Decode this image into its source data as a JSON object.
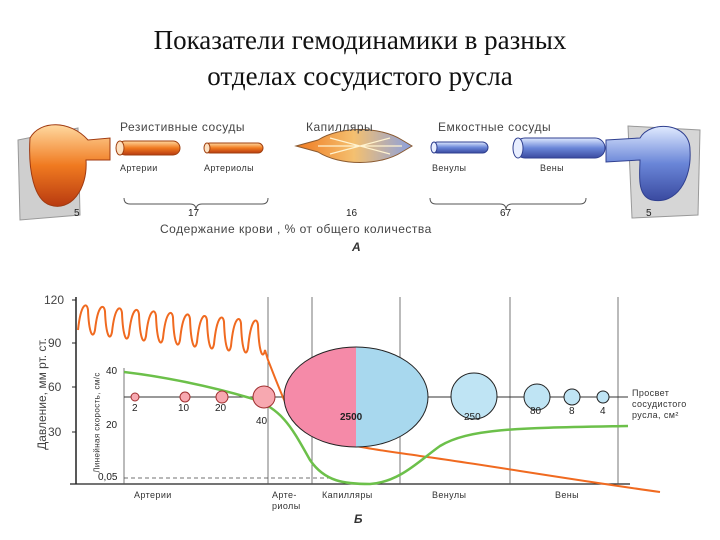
{
  "title": {
    "line1": "Показатели гемодинамики в разных",
    "line2": "отделах сосудистого русла"
  },
  "panel_a": {
    "group_labels": [
      "Резистивные сосуды",
      "Капилляры",
      "Емкостные сосуды"
    ],
    "vessel_labels": [
      "Артерии",
      "Артериолы",
      "Венулы",
      "Вены"
    ],
    "blood_content_values": [
      "5",
      "17",
      "16",
      "67",
      "5"
    ],
    "blood_content_caption": "Содержание крови , % от общего количества",
    "panel_letter": "А"
  },
  "panel_b": {
    "pressure_axis_label": "Давление, мм рт. ст.",
    "pressure_ticks": [
      "120",
      "90",
      "60",
      "30"
    ],
    "velocity_axis_label": "Линейная скорость, см/с",
    "velocity_ticks": [
      "40",
      "20",
      "0,05"
    ],
    "cross_section_values": [
      "2",
      "10",
      "20",
      "40",
      "2500",
      "250",
      "80",
      "8",
      "4"
    ],
    "cross_section_label": "Просвет сосудистого русла, см²",
    "x_categories": [
      "Артерии",
      "Арте-риолы",
      "Капилляры",
      "Венулы",
      "Вены"
    ],
    "panel_letter": "Б",
    "colors": {
      "pressure": "#f06a20",
      "velocity": "#6cc04a",
      "capillary_pink": "#f58aa8",
      "capillary_blue": "#a8d8ee",
      "small_circle_fill": "#f7a8b0"
    }
  }
}
